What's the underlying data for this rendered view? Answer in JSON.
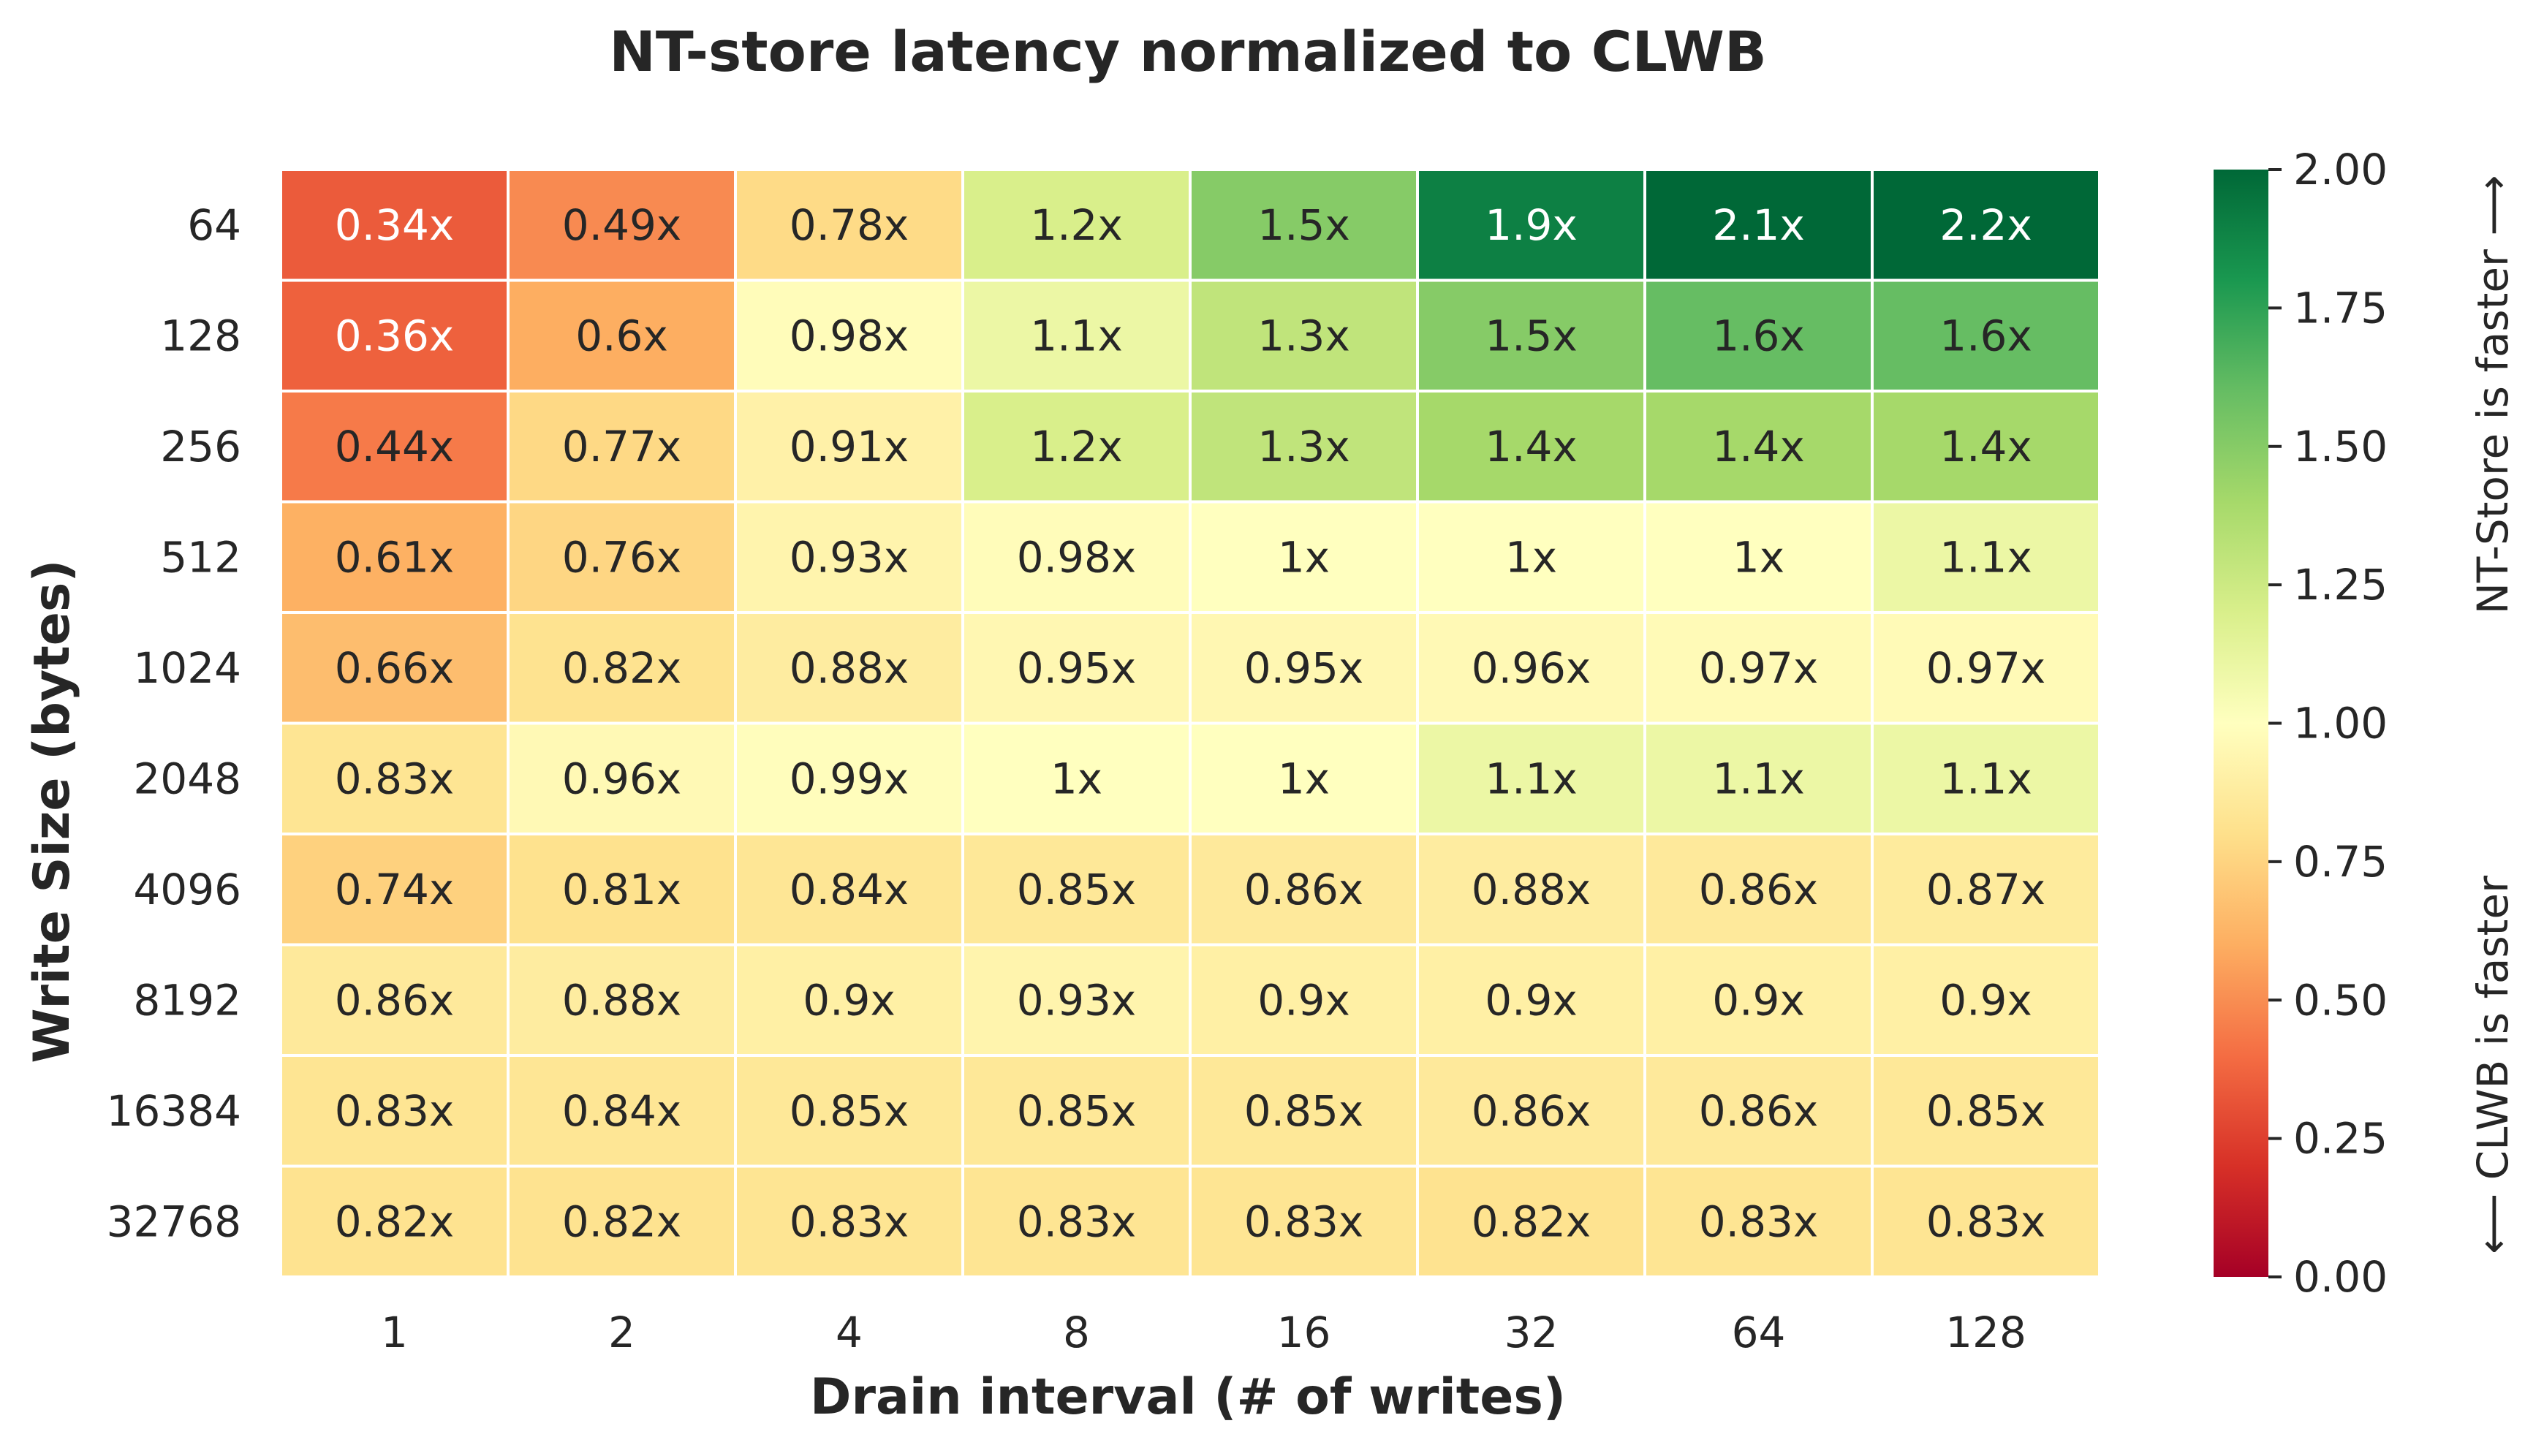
{
  "chart_data": {
    "type": "heatmap",
    "title": "NT-store latency normalized to CLWB",
    "xlabel": "Drain interval (# of writes)",
    "ylabel": "Write Size (bytes)",
    "x_categories": [
      "1",
      "2",
      "4",
      "8",
      "16",
      "32",
      "64",
      "128"
    ],
    "y_categories": [
      "64",
      "128",
      "256",
      "512",
      "1024",
      "2048",
      "4096",
      "8192",
      "16384",
      "32768"
    ],
    "values": [
      [
        0.34,
        0.49,
        0.78,
        1.2,
        1.5,
        1.9,
        2.1,
        2.2
      ],
      [
        0.36,
        0.6,
        0.98,
        1.1,
        1.3,
        1.5,
        1.6,
        1.6
      ],
      [
        0.44,
        0.77,
        0.91,
        1.2,
        1.3,
        1.4,
        1.4,
        1.4
      ],
      [
        0.61,
        0.76,
        0.93,
        0.98,
        1,
        1,
        1,
        1.1
      ],
      [
        0.66,
        0.82,
        0.88,
        0.95,
        0.95,
        0.96,
        0.97,
        0.97
      ],
      [
        0.83,
        0.96,
        0.99,
        1,
        1,
        1.1,
        1.1,
        1.1
      ],
      [
        0.74,
        0.81,
        0.84,
        0.85,
        0.86,
        0.88,
        0.86,
        0.87
      ],
      [
        0.86,
        0.88,
        0.9,
        0.93,
        0.9,
        0.9,
        0.9,
        0.9
      ],
      [
        0.83,
        0.84,
        0.85,
        0.85,
        0.85,
        0.86,
        0.86,
        0.85
      ],
      [
        0.82,
        0.82,
        0.83,
        0.83,
        0.83,
        0.82,
        0.83,
        0.83
      ]
    ],
    "cell_labels": [
      [
        "0.34x",
        "0.49x",
        "0.78x",
        "1.2x",
        "1.5x",
        "1.9x",
        "2.1x",
        "2.2x"
      ],
      [
        "0.36x",
        "0.6x",
        "0.98x",
        "1.1x",
        "1.3x",
        "1.5x",
        "1.6x",
        "1.6x"
      ],
      [
        "0.44x",
        "0.77x",
        "0.91x",
        "1.2x",
        "1.3x",
        "1.4x",
        "1.4x",
        "1.4x"
      ],
      [
        "0.61x",
        "0.76x",
        "0.93x",
        "0.98x",
        "1x",
        "1x",
        "1x",
        "1.1x"
      ],
      [
        "0.66x",
        "0.82x",
        "0.88x",
        "0.95x",
        "0.95x",
        "0.96x",
        "0.97x",
        "0.97x"
      ],
      [
        "0.83x",
        "0.96x",
        "0.99x",
        "1x",
        "1x",
        "1.1x",
        "1.1x",
        "1.1x"
      ],
      [
        "0.74x",
        "0.81x",
        "0.84x",
        "0.85x",
        "0.86x",
        "0.88x",
        "0.86x",
        "0.87x"
      ],
      [
        "0.86x",
        "0.88x",
        "0.9x",
        "0.93x",
        "0.9x",
        "0.9x",
        "0.9x",
        "0.9x"
      ],
      [
        "0.83x",
        "0.84x",
        "0.85x",
        "0.85x",
        "0.85x",
        "0.86x",
        "0.86x",
        "0.85x"
      ],
      [
        "0.82x",
        "0.82x",
        "0.83x",
        "0.83x",
        "0.83x",
        "0.82x",
        "0.83x",
        "0.83x"
      ]
    ],
    "colorbar": {
      "colormap": "RdYlGn",
      "range": [
        0,
        2
      ],
      "ticks": [
        "0.00",
        "0.25",
        "0.50",
        "0.75",
        "1.00",
        "1.25",
        "1.50",
        "1.75",
        "2.00"
      ],
      "label_top": "NT-Store is faster ⟶",
      "label_bottom": "⟵ CLWB is faster"
    },
    "grid": false,
    "legend": "colorbar-right"
  }
}
